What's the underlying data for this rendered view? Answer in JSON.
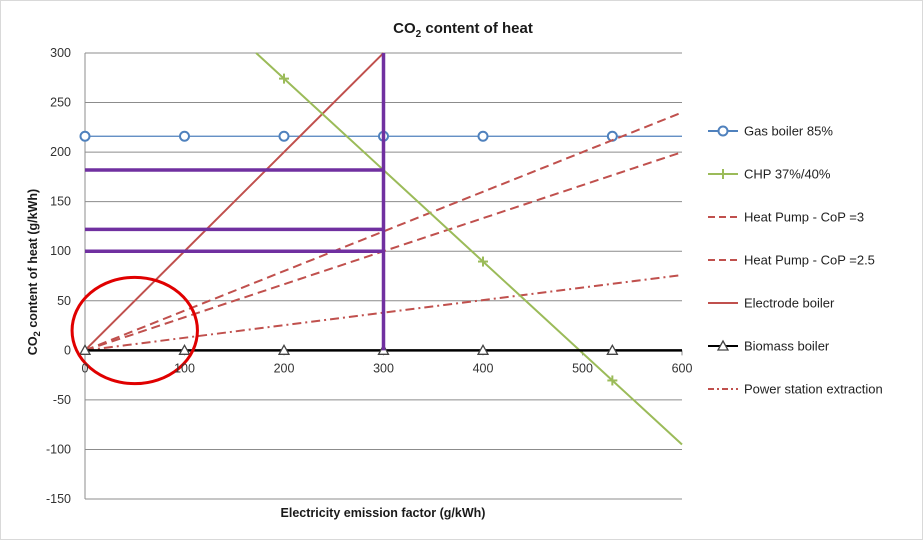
{
  "chart_data": {
    "type": "line",
    "title_main": "CO",
    "title_sub": "2",
    "title_rest": " content of heat",
    "xlabel": "Electricity emission factor (g/kWh)",
    "ylabel_main": "CO",
    "ylabel_sub": "2",
    "ylabel_rest": " content of heat (g/kWh)",
    "xlim": [
      0,
      600
    ],
    "ylim": [
      -150,
      300
    ],
    "x_ticks": [
      0,
      100,
      200,
      300,
      400,
      500,
      600
    ],
    "y_ticks": [
      300,
      250,
      200,
      150,
      100,
      50,
      0,
      -50,
      -100,
      -150
    ],
    "x_tick_labels": [
      "0",
      "100",
      "200",
      "300",
      "400",
      "500",
      "600"
    ],
    "y_tick_labels": [
      "300",
      "250",
      "200",
      "150",
      "100",
      "50",
      "0",
      "-50",
      "-100",
      "-150"
    ],
    "grid": true,
    "legend_position": "right",
    "series": [
      {
        "name": "Gas boiler 85%",
        "color": "#4f81bd",
        "dash": "solid",
        "marker": "circle",
        "x": [
          0,
          600
        ],
        "y": [
          216,
          216
        ],
        "marker_x": [
          0,
          100,
          200,
          300,
          400,
          530
        ]
      },
      {
        "name": "CHP 37%/40%",
        "color": "#9bbb59",
        "dash": "solid",
        "marker": "plus",
        "x": [
          172,
          600
        ],
        "y": [
          300,
          -95
        ],
        "marker_x": [
          200,
          400,
          530
        ]
      },
      {
        "name": "Heat Pump - CoP =3",
        "color": "#c0504d",
        "dash": "dash",
        "x": [
          0,
          600
        ],
        "y": [
          0,
          200
        ]
      },
      {
        "name": "Heat Pump - CoP =2.5",
        "color": "#c0504d",
        "dash": "dash",
        "x": [
          0,
          600
        ],
        "y": [
          0,
          240
        ]
      },
      {
        "name": "Electrode boiler",
        "color": "#c0504d",
        "dash": "solid",
        "x": [
          0,
          300
        ],
        "y": [
          0,
          300
        ]
      },
      {
        "name": "Biomass boiler",
        "color": "#000000",
        "dash": "solid",
        "marker": "triangle",
        "x": [
          0,
          600
        ],
        "y": [
          0,
          0
        ],
        "marker_x": [
          0,
          100,
          200,
          300,
          400,
          530
        ]
      },
      {
        "name": "Power station extraction",
        "color": "#c0504d",
        "dash": "dashdot",
        "x": [
          0,
          600
        ],
        "y": [
          0,
          76
        ]
      }
    ],
    "annotations": {
      "color": "#7030a0",
      "vertical_line": {
        "x": 300,
        "y_range": [
          0,
          300
        ]
      },
      "horizontal_lines": [
        {
          "y": 182,
          "x_range": [
            0,
            300
          ]
        },
        {
          "y": 122,
          "x_range": [
            0,
            300
          ]
        },
        {
          "y": 100,
          "x_range": [
            0,
            300
          ]
        }
      ],
      "ellipse": {
        "color": "#e00000",
        "center": [
          50,
          20
        ],
        "rx_data": 63,
        "ry_data": 37
      }
    }
  }
}
